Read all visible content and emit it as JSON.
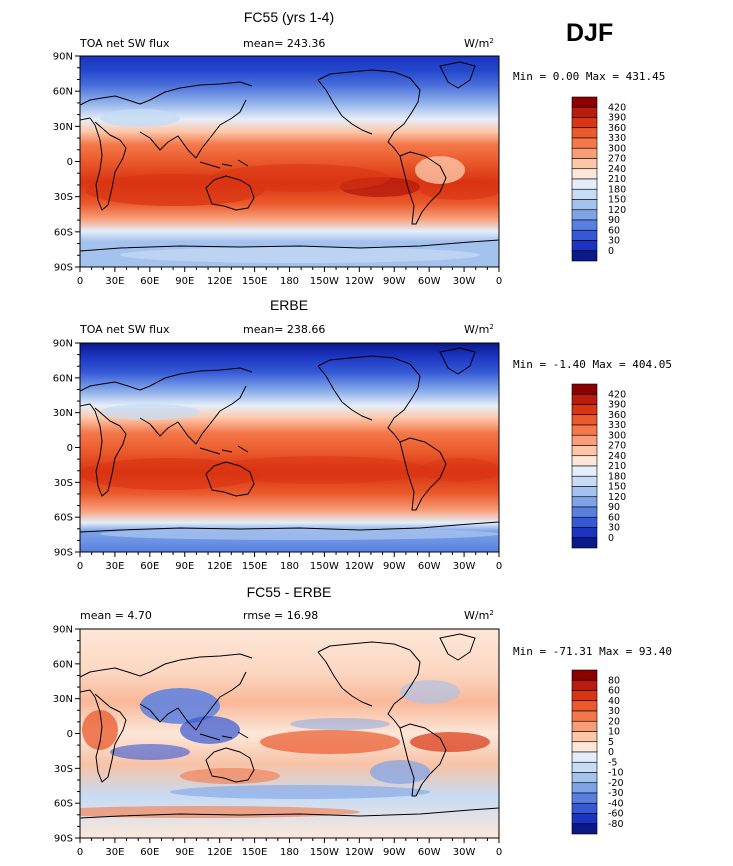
{
  "season": "DJF",
  "lat_labels": [
    "90N",
    "60N",
    "30N",
    "0",
    "30S",
    "60S",
    "90S"
  ],
  "lon_labels": [
    "0",
    "30E",
    "60E",
    "90E",
    "120E",
    "150E",
    "180",
    "150W",
    "120W",
    "90W",
    "60W",
    "30W",
    "0"
  ],
  "panels": [
    {
      "title": "FC55 (yrs 1-4)",
      "left_text": "TOA net SW flux",
      "center_text": "mean= 243.36",
      "units": "W/m",
      "units_sup": "2",
      "stats_text": "Min =   0.00 Max = 431.45",
      "colorbar_levels": [
        "420",
        "390",
        "360",
        "330",
        "300",
        "270",
        "240",
        "210",
        "180",
        "150",
        "120",
        "90",
        "60",
        "30",
        "0"
      ],
      "colorbar_colors": [
        "#8b0000",
        "#b81c0c",
        "#d93413",
        "#ea5a2c",
        "#f4784a",
        "#f99d78",
        "#fcc6a8",
        "#fde7d8",
        "#e3eefa",
        "#c6dcf4",
        "#a4c2ee",
        "#7ea3e8",
        "#5980e1",
        "#3559d6",
        "#1b33c0",
        "#0a1888"
      ]
    },
    {
      "title": "ERBE",
      "left_text": "TOA net SW flux",
      "center_text": "mean= 238.66",
      "units": "W/m",
      "units_sup": "2",
      "stats_text": "Min =  -1.40 Max = 404.05",
      "colorbar_levels": [
        "420",
        "390",
        "360",
        "330",
        "300",
        "270",
        "240",
        "210",
        "180",
        "150",
        "120",
        "90",
        "60",
        "30",
        "0"
      ],
      "colorbar_colors": [
        "#8b0000",
        "#b81c0c",
        "#d93413",
        "#ea5a2c",
        "#f4784a",
        "#f99d78",
        "#fcc6a8",
        "#fde7d8",
        "#e3eefa",
        "#c6dcf4",
        "#a4c2ee",
        "#7ea3e8",
        "#5980e1",
        "#3559d6",
        "#1b33c0",
        "#0a1888"
      ]
    },
    {
      "title": "FC55 - ERBE",
      "left_text": "mean =   4.70",
      "center_text": "rmse =  16.98",
      "units": "W/m",
      "units_sup": "2",
      "stats_text": "Min = -71.31 Max =  93.40",
      "colorbar_levels": [
        "80",
        "60",
        "40",
        "30",
        "20",
        "10",
        "5",
        "0",
        "-5",
        "-10",
        "-20",
        "-30",
        "-40",
        "-60",
        "-80"
      ],
      "colorbar_colors": [
        "#8b0000",
        "#b81c0c",
        "#d93413",
        "#ea5a2c",
        "#f4784a",
        "#f99d78",
        "#fcc6a8",
        "#fde7d8",
        "#e3eefa",
        "#c6dcf4",
        "#a4c2ee",
        "#7ea3e8",
        "#5980e1",
        "#3559d6",
        "#1b33c0",
        "#0a1888"
      ]
    }
  ]
}
